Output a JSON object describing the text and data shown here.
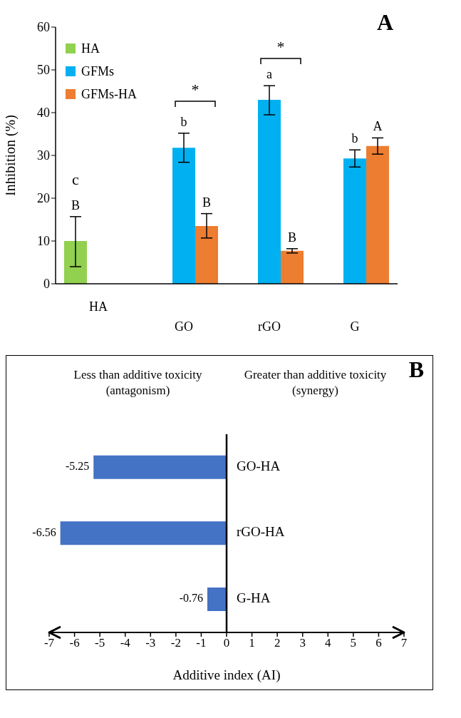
{
  "chart_data": [
    {
      "type": "bar",
      "ylabel": "Inhibition (%)",
      "categories": [
        "HA",
        "GO",
        "rGO",
        "G"
      ],
      "series": [
        {
          "name": "HA",
          "color": "#92d050",
          "values": [
            10,
            null,
            null,
            null
          ],
          "errors": [
            [
              4,
              15.7
            ],
            null,
            null,
            null
          ],
          "value_labels": [
            "B",
            null,
            null,
            null
          ]
        },
        {
          "name": "GFMs",
          "color": "#00b0f0",
          "values": [
            null,
            31.8,
            43,
            29.3
          ],
          "errors": [
            null,
            3.4,
            [
              39.5,
              46.3
            ],
            2
          ],
          "value_labels": [
            null,
            "b",
            "a",
            "b"
          ]
        },
        {
          "name": "GFMs-HA",
          "color": "#ed7d31",
          "values": [
            null,
            13.5,
            7.7,
            32.2
          ],
          "errors": [
            null,
            [
              10.7,
              16.4
            ],
            0.5,
            1.9
          ],
          "value_labels": [
            null,
            "B",
            "B",
            "A"
          ]
        }
      ],
      "ylim": [
        0,
        60
      ],
      "yticks": [
        0,
        10,
        20,
        30,
        40,
        50,
        60
      ],
      "legend": "top left",
      "annotations": [
        "A",
        "c",
        "*",
        "*"
      ]
    },
    {
      "type": "bar",
      "orientation": "horizontal",
      "xlabel": "Additive index (AI)",
      "categories": [
        "GO-HA",
        "rGO-HA",
        "G-HA"
      ],
      "values": [
        -5.25,
        -6.56,
        -0.76
      ],
      "color": "#4472c4",
      "data_labels": true,
      "xlim": [
        -7,
        7
      ],
      "xticks": [
        -7,
        -6,
        -5,
        -4,
        -3,
        -2,
        -1,
        0,
        1,
        2,
        3,
        4,
        5,
        6,
        7
      ],
      "annotations": [
        "B",
        "Less than additive toxicity (antagonism)",
        "Greater than additive toxicity (synergy)"
      ]
    }
  ]
}
